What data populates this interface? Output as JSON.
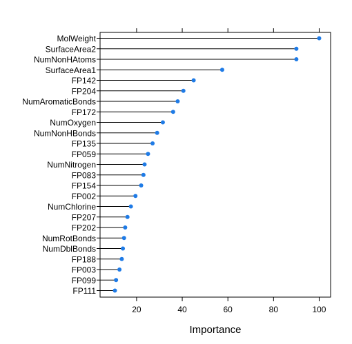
{
  "chart_data": {
    "type": "dot",
    "xlabel": "Importance",
    "ylabel": "",
    "xlim": [
      4,
      105
    ],
    "xticks": [
      20,
      40,
      60,
      80,
      100
    ],
    "grid": false,
    "colors": {
      "point": "#1F7BE6",
      "stem": "#000000",
      "frame": "#000000"
    },
    "categories": [
      "MolWeight",
      "SurfaceArea2",
      "NumNonHAtoms",
      "SurfaceArea1",
      "FP142",
      "FP204",
      "NumAromaticBonds",
      "FP172",
      "NumOxygen",
      "NumNonHBonds",
      "FP135",
      "FP059",
      "NumNitrogen",
      "FP083",
      "FP154",
      "FP002",
      "NumChlorine",
      "FP207",
      "FP202",
      "NumRotBonds",
      "NumDblBonds",
      "FP188",
      "FP003",
      "FP099",
      "FP111"
    ],
    "values": [
      100,
      90,
      90,
      57.5,
      45,
      40.5,
      38,
      36,
      31.5,
      29,
      27,
      25,
      23.5,
      23,
      22,
      19.5,
      17.5,
      16,
      15,
      14.5,
      14,
      13.5,
      12.5,
      11,
      10.5
    ]
  }
}
